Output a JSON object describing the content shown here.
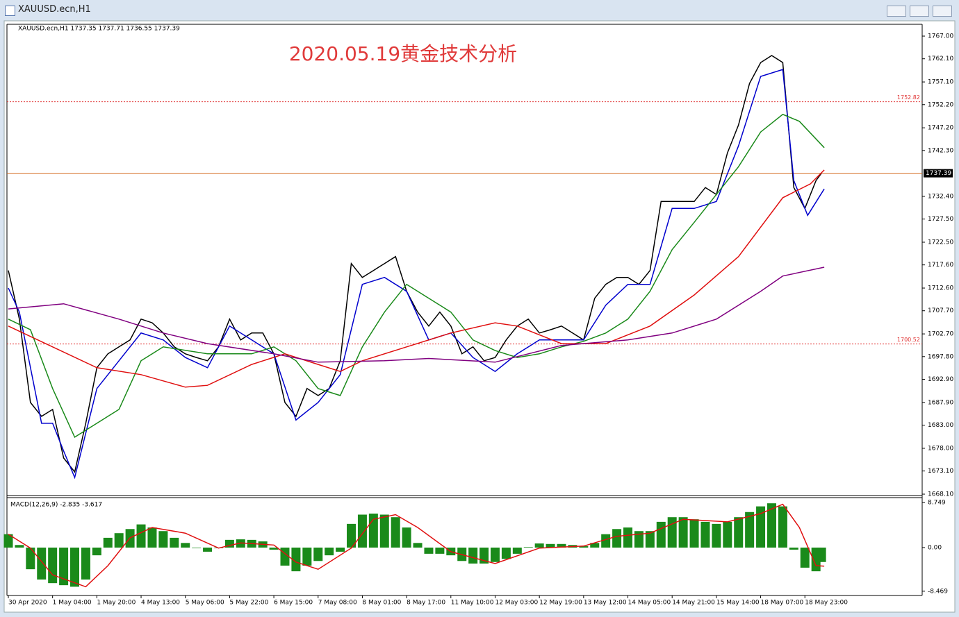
{
  "window": {
    "title": "XAUUSD.ecn,H1"
  },
  "chart_data": [
    {
      "type": "line",
      "title": "2020.05.19黄金技术分析",
      "subtitle": "XAUUSD.ecn,H1  1737.35 1737.71 1736.55 1737.39",
      "xlim": [
        -0.5,
        330.4
      ],
      "ylim": [
        1667.8,
        1769.55
      ],
      "yticks": [
        {
          "value": 1767.0,
          "label": "1767.00"
        },
        {
          "value": 1762.1,
          "label": "1762.10"
        },
        {
          "value": 1757.1,
          "label": "1757.10"
        },
        {
          "value": 1752.2,
          "label": "1752.20"
        },
        {
          "value": 1747.2,
          "label": "1747.20"
        },
        {
          "value": 1742.3,
          "label": "1742.30"
        },
        {
          "value": 1732.4,
          "label": "1732.40"
        },
        {
          "value": 1727.5,
          "label": "1727.50"
        },
        {
          "value": 1722.5,
          "label": "1722.50"
        },
        {
          "value": 1717.6,
          "label": "1717.60"
        },
        {
          "value": 1712.6,
          "label": "1712.60"
        },
        {
          "value": 1707.7,
          "label": "1707.70"
        },
        {
          "value": 1702.7,
          "label": "1702.70"
        },
        {
          "value": 1697.8,
          "label": "1697.80"
        },
        {
          "value": 1692.9,
          "label": "1692.90"
        },
        {
          "value": 1687.9,
          "label": "1687.90"
        },
        {
          "value": 1683.0,
          "label": "1683.00"
        },
        {
          "value": 1678.0,
          "label": "1678.00"
        },
        {
          "value": 1673.1,
          "label": "1673.10"
        },
        {
          "value": 1668.1,
          "label": "1668.10"
        }
      ],
      "levels": [
        {
          "value": 1752.82,
          "color": "#e03030"
        },
        {
          "value": 1700.52,
          "color": "#e03030"
        }
      ],
      "current": {
        "value": 1737.39,
        "color": "#d2691e"
      },
      "series": [
        {
          "color": "#000000",
          "x": [
            0,
            4,
            8,
            12,
            16,
            20,
            24,
            28,
            32,
            36,
            40,
            44,
            48,
            52,
            56,
            60,
            64,
            68,
            72,
            76,
            80,
            84,
            88,
            92,
            96,
            100,
            104,
            108,
            112,
            116,
            120,
            124,
            128,
            132,
            136,
            140,
            144,
            148,
            152,
            156,
            160,
            164,
            168,
            172,
            176,
            180,
            184,
            188,
            192,
            196,
            200,
            204,
            208,
            212,
            216,
            220,
            224,
            228,
            232,
            236,
            240,
            244,
            248,
            252,
            256,
            260,
            264,
            268,
            272,
            276,
            280,
            284,
            288,
            292,
            294
          ],
          "values": [
            1716.4,
            1705.9,
            1687.9,
            1684.9,
            1686.4,
            1675.9,
            1672.9,
            1683.4,
            1695.4,
            1698.4,
            1699.9,
            1701.4,
            1705.9,
            1705.1,
            1702.9,
            1699.9,
            1698.4,
            1697.6,
            1696.9,
            1699.9,
            1705.9,
            1701.4,
            1702.9,
            1702.9,
            1698.4,
            1687.9,
            1684.9,
            1690.9,
            1689.4,
            1690.9,
            1696.9,
            1717.9,
            1714.9,
            1716.4,
            1717.9,
            1719.4,
            1711.9,
            1707.4,
            1704.4,
            1707.4,
            1704.4,
            1698.4,
            1699.9,
            1696.9,
            1697.6,
            1701.4,
            1704.4,
            1705.9,
            1702.9,
            1703.6,
            1704.4,
            1702.9,
            1701.4,
            1710.4,
            1713.4,
            1714.9,
            1714.9,
            1713.4,
            1716.4,
            1731.3,
            1731.3,
            1731.3,
            1731.3,
            1734.3,
            1732.8,
            1741.8,
            1747.8,
            1756.8,
            1761.3,
            1762.8,
            1761.3,
            1734.3,
            1729.8,
            1735.8,
            1737.4
          ]
        },
        {
          "color": "#0000cd",
          "x": [
            0,
            4,
            12,
            16,
            20,
            24,
            32,
            40,
            48,
            56,
            64,
            72,
            80,
            88,
            96,
            104,
            112,
            120,
            128,
            136,
            144,
            152,
            160,
            168,
            176,
            184,
            192,
            200,
            208,
            216,
            224,
            232,
            240,
            248,
            256,
            264,
            272,
            280,
            284,
            289,
            295
          ],
          "values": [
            1712.6,
            1707.4,
            1683.4,
            1683.4,
            1677.4,
            1671.7,
            1690.9,
            1696.9,
            1702.9,
            1701.4,
            1697.6,
            1695.4,
            1704.4,
            1701.4,
            1698.4,
            1684.1,
            1687.9,
            1693.9,
            1713.4,
            1714.9,
            1711.9,
            1701.4,
            1702.9,
            1697.6,
            1694.6,
            1698.4,
            1701.4,
            1701.4,
            1701.4,
            1708.9,
            1713.4,
            1713.4,
            1729.8,
            1729.8,
            1731.3,
            1743.3,
            1758.3,
            1759.8,
            1735.8,
            1728.3,
            1734.0
          ]
        },
        {
          "color": "#1a8a1a",
          "x": [
            0,
            8,
            16,
            24,
            32,
            40,
            48,
            56,
            72,
            88,
            96,
            104,
            112,
            120,
            128,
            136,
            144,
            152,
            160,
            168,
            176,
            184,
            192,
            200,
            208,
            216,
            224,
            232,
            240,
            248,
            256,
            264,
            272,
            280,
            286,
            295
          ],
          "values": [
            1705.9,
            1703.6,
            1690.9,
            1680.4,
            1683.4,
            1686.4,
            1696.9,
            1699.9,
            1698.4,
            1698.4,
            1699.9,
            1696.9,
            1690.9,
            1689.4,
            1699.9,
            1707.4,
            1713.4,
            1710.4,
            1707.4,
            1701.4,
            1699.1,
            1697.6,
            1698.4,
            1699.9,
            1701.1,
            1702.9,
            1705.9,
            1711.9,
            1720.9,
            1726.8,
            1732.8,
            1738.8,
            1746.3,
            1750.1,
            1748.6,
            1742.9
          ]
        },
        {
          "color": "#e01010",
          "x": [
            0,
            16,
            32,
            48,
            64,
            72,
            88,
            100,
            112,
            120,
            128,
            144,
            160,
            176,
            184,
            200,
            216,
            232,
            248,
            264,
            280,
            290,
            295
          ],
          "values": [
            1704.4,
            1699.9,
            1695.4,
            1693.9,
            1691.2,
            1691.6,
            1696.1,
            1698.4,
            1696.1,
            1694.6,
            1696.9,
            1699.9,
            1702.9,
            1705.1,
            1704.4,
            1700.6,
            1700.6,
            1704.4,
            1711.1,
            1719.4,
            1732.1,
            1735.1,
            1738.1
          ]
        },
        {
          "color": "#800080",
          "x": [
            0,
            20,
            40,
            56,
            72,
            96,
            112,
            136,
            152,
            176,
            200,
            224,
            240,
            256,
            272,
            280,
            295
          ],
          "values": [
            1708.1,
            1709.2,
            1705.9,
            1702.9,
            1700.6,
            1698.4,
            1696.6,
            1696.9,
            1697.4,
            1696.6,
            1700.2,
            1701.4,
            1702.9,
            1705.9,
            1711.9,
            1715.2,
            1717.1
          ]
        }
      ]
    },
    {
      "type": "macd",
      "title": "MACD(12,26,9) -2.835 -3.617",
      "xlim": [
        -0.5,
        330.4
      ],
      "ylim": [
        -9.3,
        9.7
      ],
      "yticks": [
        8.749,
        {
          "value": 0,
          "label": "0.00"
        },
        -8.469
      ],
      "xticks": [
        {
          "value": 0,
          "label": "30 Apr 2020"
        },
        {
          "value": 16,
          "label": "1 May 04:00"
        },
        {
          "value": 32,
          "label": "1 May 20:00"
        },
        {
          "value": 48,
          "label": "4 May 13:00"
        },
        {
          "value": 64,
          "label": "5 May 06:00"
        },
        {
          "value": 80,
          "label": "5 May 22:00"
        },
        {
          "value": 96,
          "label": "6 May 15:00"
        },
        {
          "value": 112,
          "label": "7 May 08:00"
        },
        {
          "value": 128,
          "label": "8 May 01:00"
        },
        {
          "value": 144,
          "label": "8 May 17:00"
        },
        {
          "value": 160,
          "label": "11 May 10:00"
        },
        {
          "value": 176,
          "label": "12 May 03:00"
        },
        {
          "value": 192,
          "label": "12 May 19:00"
        },
        {
          "value": 208,
          "label": "13 May 12:00"
        },
        {
          "value": 224,
          "label": "14 May 05:00"
        },
        {
          "value": 240,
          "label": "14 May 21:00"
        },
        {
          "value": 256,
          "label": "15 May 14:00"
        },
        {
          "value": 272,
          "label": "18 May 07:00"
        },
        {
          "value": 288,
          "label": "18 May 23:00"
        }
      ],
      "series": [
        {
          "type": "bar",
          "color": "#1a8a1a",
          "x": [
            0,
            4,
            8,
            12,
            16,
            20,
            24,
            28,
            32,
            36,
            40,
            44,
            48,
            52,
            56,
            60,
            64,
            68,
            72,
            76,
            80,
            84,
            88,
            92,
            96,
            100,
            104,
            108,
            112,
            116,
            120,
            124,
            128,
            132,
            136,
            140,
            144,
            148,
            152,
            156,
            160,
            164,
            168,
            172,
            176,
            180,
            184,
            188,
            192,
            196,
            200,
            204,
            208,
            212,
            216,
            220,
            224,
            228,
            232,
            236,
            240,
            244,
            248,
            252,
            256,
            260,
            264,
            268,
            272,
            276,
            280,
            284,
            288,
            292,
            294
          ],
          "values": [
            2.6,
            0.5,
            -4.2,
            -6.2,
            -6.9,
            -7.3,
            -7.6,
            -6.2,
            -1.5,
            1.9,
            2.8,
            3.6,
            4.5,
            3.9,
            3.2,
            1.9,
            0.9,
            -0.1,
            -0.8,
            -0.1,
            1.5,
            1.6,
            1.5,
            1.2,
            -0.4,
            -3.5,
            -4.6,
            -3.5,
            -2.6,
            -1.5,
            -0.8,
            4.6,
            6.4,
            6.6,
            6.4,
            5.9,
            3.9,
            0.9,
            -1.2,
            -1.2,
            -1.5,
            -2.6,
            -3.1,
            -3.1,
            -2.8,
            -2.2,
            -1.2,
            0.1,
            0.8,
            0.7,
            0.7,
            0.5,
            0.3,
            0.9,
            2.6,
            3.6,
            3.9,
            3.2,
            3.2,
            5.0,
            5.9,
            5.9,
            5.5,
            5.0,
            4.6,
            5.0,
            5.9,
            6.9,
            8.0,
            8.6,
            8.0,
            -0.4,
            -3.9,
            -4.6,
            -2.8
          ]
        },
        {
          "type": "line",
          "color": "#e01010",
          "x": [
            0,
            8,
            16,
            28,
            36,
            44,
            52,
            64,
            76,
            84,
            96,
            104,
            112,
            124,
            132,
            140,
            148,
            160,
            176,
            192,
            208,
            220,
            232,
            244,
            260,
            272,
            280,
            286,
            292,
            295
          ],
          "values": [
            2.6,
            -0.1,
            -5.3,
            -7.6,
            -3.5,
            1.9,
            3.9,
            2.8,
            -0.1,
            0.9,
            0.5,
            -2.8,
            -4.2,
            -0.1,
            5.5,
            6.4,
            3.9,
            -0.8,
            -3.1,
            -0.1,
            0.3,
            2.2,
            2.8,
            5.5,
            5.0,
            6.6,
            8.4,
            3.9,
            -3.5,
            -3.6
          ]
        }
      ]
    }
  ]
}
